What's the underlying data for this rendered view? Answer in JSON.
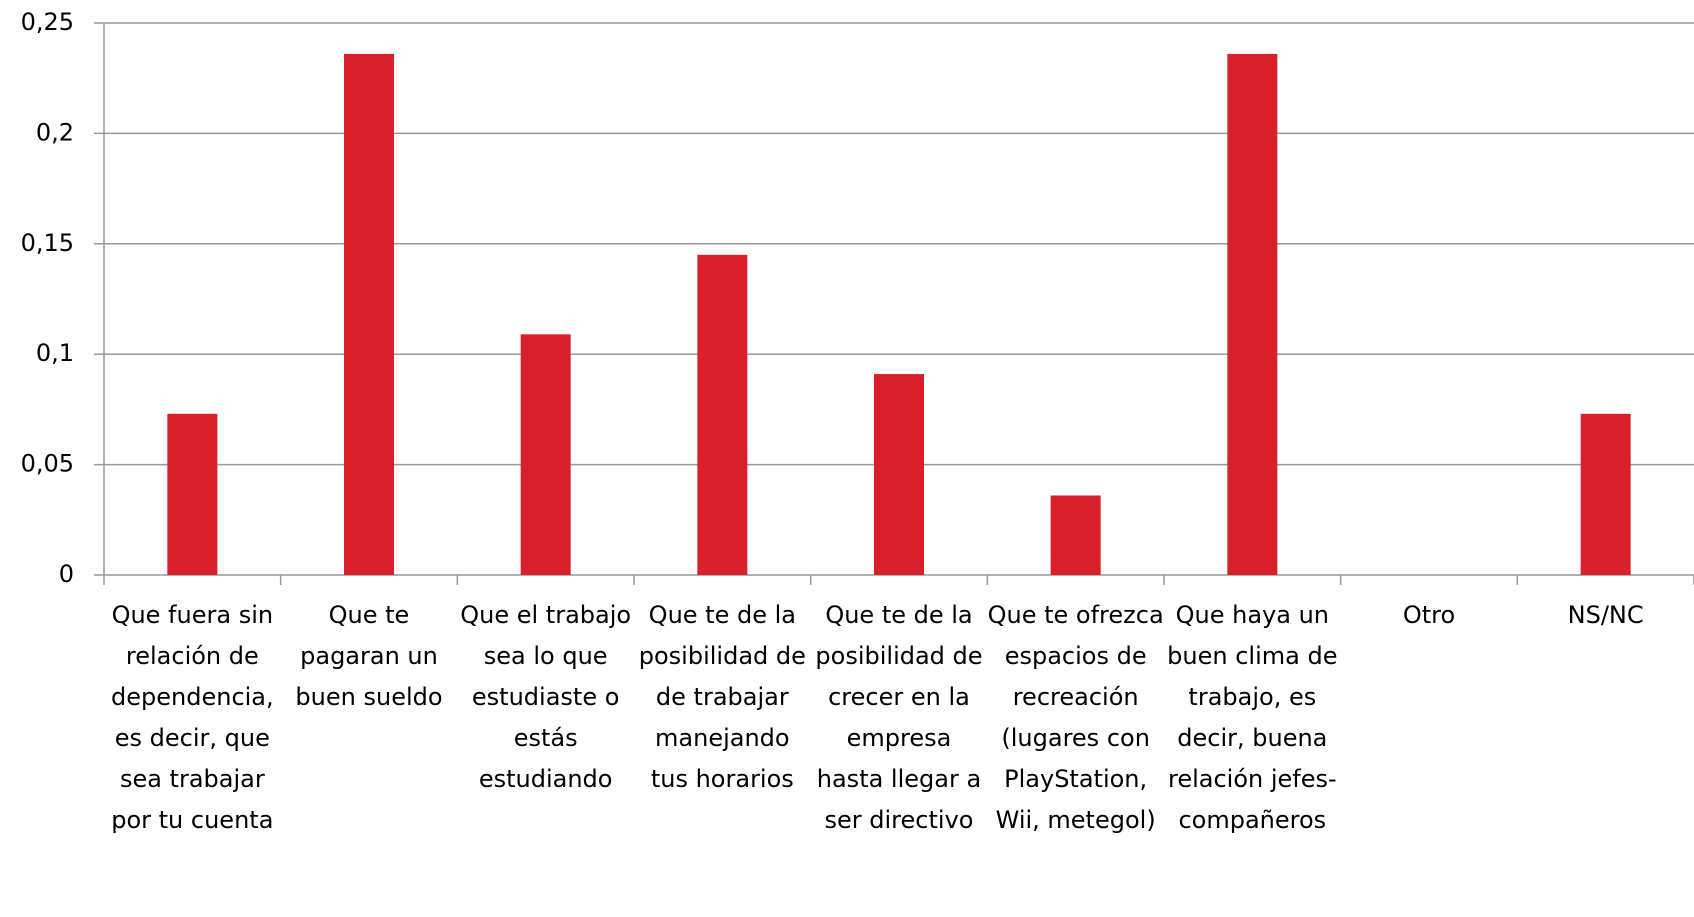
{
  "chart_data": {
    "type": "bar",
    "categories": [
      "Que fuera sin relación de dependencia, es decir, que sea trabajar por tu cuenta",
      "Que te pagaran un buen sueldo",
      "Que el trabajo sea lo que estudiaste o estás estudiando",
      "Que te de la posibilidad de de trabajar manejando tus horarios",
      "Que te de la posibilidad de crecer en la empresa hasta llegar a ser directivo",
      "Que te ofrezca espacios de recreación (lugares con PlayStation, Wii, metegol)",
      "Que haya un buen clima de trabajo, es decir, buena relación jefes-compañeros",
      "Otro",
      "NS/NC"
    ],
    "values": [
      0.073,
      0.236,
      0.109,
      0.145,
      0.091,
      0.036,
      0.236,
      0,
      0.073
    ],
    "color": "#d9202a",
    "ylim": [
      0,
      0.25
    ],
    "yticks": [
      0,
      {
        "value": 0.05,
        "label": "0,05"
      },
      {
        "value": 0.1,
        "label": "0,1"
      },
      {
        "value": 0.15,
        "label": "0,15"
      },
      {
        "value": 0.2,
        "label": "0,2"
      },
      {
        "value": 0.25,
        "label": "0,25"
      }
    ],
    "grid": true
  }
}
